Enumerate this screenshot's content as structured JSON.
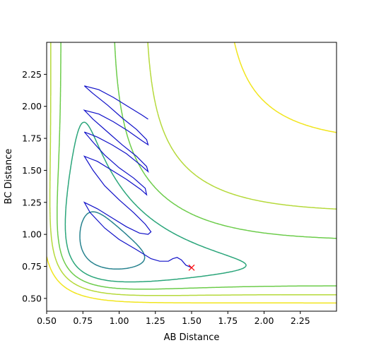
{
  "chart_data": {
    "type": "contour",
    "xlabel": "AB Distance",
    "ylabel": "BC Distance",
    "xlim": [
      0.5,
      2.5
    ],
    "ylim": [
      0.4,
      2.5
    ],
    "x_ticks": [
      "0.50",
      "0.75",
      "1.00",
      "1.25",
      "1.50",
      "1.75",
      "2.00",
      "2.25"
    ],
    "y_ticks": [
      "0.50",
      "0.75",
      "1.00",
      "1.25",
      "1.50",
      "1.75",
      "2.00",
      "2.25"
    ],
    "grid": false,
    "contour_colors": [
      "#3b2a6e",
      "#2e5f8a",
      "#26828e",
      "#2aa57a",
      "#6ccc4a",
      "#b5d93a",
      "#f1e51d"
    ],
    "trajectory_color": "#1010c8",
    "end_marker": {
      "x": 1.5,
      "y": 0.74,
      "symbol": "x",
      "color": "#ff0000"
    },
    "trajectory": [
      [
        1.5,
        0.74
      ],
      [
        1.46,
        0.76
      ],
      [
        1.43,
        0.8
      ],
      [
        1.4,
        0.82
      ],
      [
        1.37,
        0.81
      ],
      [
        1.34,
        0.79
      ],
      [
        1.28,
        0.79
      ],
      [
        1.22,
        0.81
      ],
      [
        1.12,
        0.88
      ],
      [
        1.0,
        0.96
      ],
      [
        0.9,
        1.05
      ],
      [
        0.8,
        1.17
      ],
      [
        0.76,
        1.25
      ],
      [
        0.85,
        1.2
      ],
      [
        0.95,
        1.13
      ],
      [
        1.05,
        1.06
      ],
      [
        1.14,
        1.01
      ],
      [
        1.2,
        1.0
      ],
      [
        1.22,
        1.02
      ],
      [
        1.18,
        1.08
      ],
      [
        1.1,
        1.17
      ],
      [
        1.0,
        1.27
      ],
      [
        0.9,
        1.38
      ],
      [
        0.82,
        1.5
      ],
      [
        0.76,
        1.61
      ],
      [
        0.85,
        1.57
      ],
      [
        0.95,
        1.5
      ],
      [
        1.05,
        1.43
      ],
      [
        1.15,
        1.35
      ],
      [
        1.19,
        1.31
      ],
      [
        1.18,
        1.36
      ],
      [
        1.1,
        1.44
      ],
      [
        1.0,
        1.52
      ],
      [
        0.9,
        1.62
      ],
      [
        0.82,
        1.72
      ],
      [
        0.76,
        1.8
      ],
      [
        0.85,
        1.76
      ],
      [
        0.95,
        1.7
      ],
      [
        1.05,
        1.63
      ],
      [
        1.15,
        1.54
      ],
      [
        1.2,
        1.49
      ],
      [
        1.19,
        1.53
      ],
      [
        1.12,
        1.61
      ],
      [
        1.02,
        1.7
      ],
      [
        0.92,
        1.8
      ],
      [
        0.82,
        1.9
      ],
      [
        0.76,
        1.97
      ],
      [
        0.86,
        1.94
      ],
      [
        0.96,
        1.88
      ],
      [
        1.06,
        1.81
      ],
      [
        1.16,
        1.73
      ],
      [
        1.2,
        1.7
      ],
      [
        1.19,
        1.74
      ],
      [
        1.12,
        1.82
      ],
      [
        1.02,
        1.91
      ],
      [
        0.92,
        2.01
      ],
      [
        0.82,
        2.1
      ],
      [
        0.76,
        2.16
      ],
      [
        0.86,
        2.13
      ],
      [
        0.96,
        2.07
      ],
      [
        1.06,
        2.0
      ],
      [
        1.16,
        1.93
      ],
      [
        1.2,
        1.9
      ]
    ]
  }
}
